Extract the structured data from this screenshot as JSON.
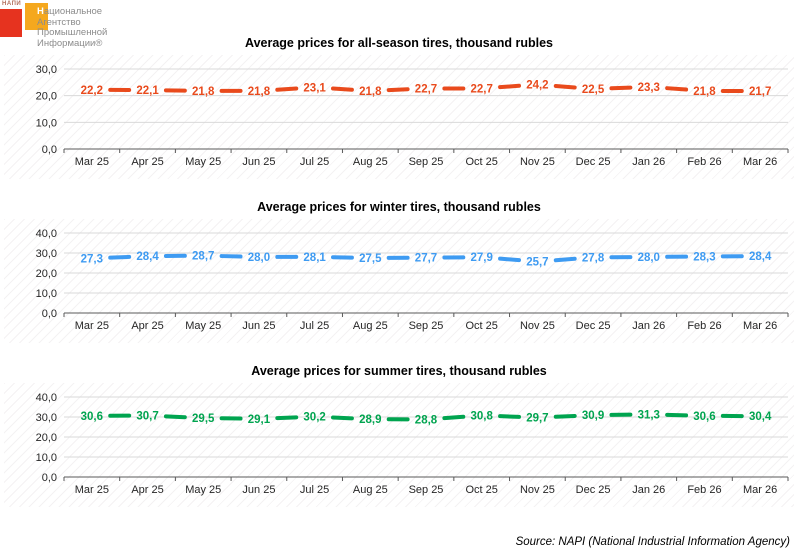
{
  "logo": {
    "mini_label": "НАПИ",
    "text_lines": "Национальное\nАгентство\nПромышленной\nИнформации®",
    "first_letter": "Н",
    "red": "#e6331f",
    "orange": "#f5a81e"
  },
  "source_note": "Source: NAPI (National Industrial Information Agency)",
  "chart_data": [
    {
      "type": "line",
      "title": "Average prices for all-season tires, thousand rubles",
      "categories": [
        "Mar 25",
        "Apr 25",
        "May 25",
        "Jun 25",
        "Jul 25",
        "Aug 25",
        "Sep 25",
        "Oct 25",
        "Nov 25",
        "Dec 25",
        "Jan 26",
        "Feb 26",
        "Mar 26"
      ],
      "values": [
        22.2,
        22.1,
        21.8,
        21.8,
        23.1,
        21.8,
        22.7,
        22.7,
        24.2,
        22.5,
        23.3,
        21.8,
        21.7
      ],
      "color": "#e94a1c",
      "ylim": [
        0,
        30
      ],
      "yticks": [
        0,
        10,
        20,
        30
      ],
      "grid": true,
      "legend": "none",
      "decimal_separator": ",",
      "data_labels": true
    },
    {
      "type": "line",
      "title": "Average prices for winter tires, thousand rubles",
      "categories": [
        "Mar 25",
        "Apr 25",
        "May 25",
        "Jun 25",
        "Jul 25",
        "Aug 25",
        "Sep 25",
        "Oct 25",
        "Nov 25",
        "Dec 25",
        "Jan 26",
        "Feb 26",
        "Mar 26"
      ],
      "values": [
        27.3,
        28.4,
        28.7,
        28.0,
        28.1,
        27.5,
        27.7,
        27.9,
        25.7,
        27.8,
        28.0,
        28.3,
        28.4
      ],
      "color": "#3e9bf2",
      "ylim": [
        0,
        40
      ],
      "yticks": [
        0,
        10,
        20,
        30,
        40
      ],
      "grid": true,
      "legend": "none",
      "decimal_separator": ",",
      "data_labels": true
    },
    {
      "type": "line",
      "title": "Average prices for summer tires, thousand rubles",
      "categories": [
        "Mar 25",
        "Apr 25",
        "May 25",
        "Jun 25",
        "Jul 25",
        "Aug 25",
        "Sep 25",
        "Oct 25",
        "Nov 25",
        "Dec 25",
        "Jan 26",
        "Feb 26",
        "Mar 26"
      ],
      "values": [
        30.6,
        30.7,
        29.5,
        29.1,
        30.2,
        28.9,
        28.8,
        30.8,
        29.7,
        30.9,
        31.3,
        30.6,
        30.4
      ],
      "color": "#00a44f",
      "ylim": [
        0,
        40
      ],
      "yticks": [
        0,
        10,
        20,
        30,
        40
      ],
      "grid": true,
      "legend": "none",
      "decimal_separator": ",",
      "data_labels": true
    }
  ]
}
